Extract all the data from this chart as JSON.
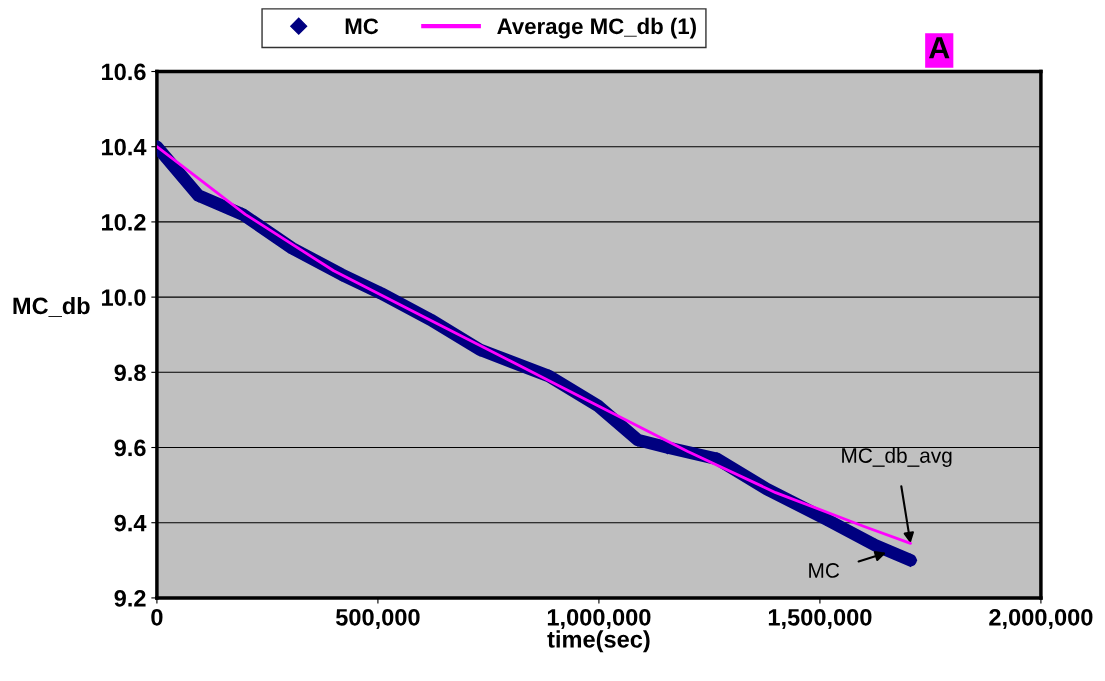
{
  "chart_data": {
    "type": "line",
    "xlabel": "time(sec)",
    "ylabel": "MC_db",
    "x": [
      0,
      94000,
      194000,
      306000,
      418000,
      507000,
      619000,
      731000,
      887000,
      999000,
      1088000,
      1155000,
      1267000,
      1379000,
      1513000,
      1625000,
      1705000
    ],
    "series": [
      {
        "name": "MC",
        "color": "#000080",
        "marker": "diamond",
        "values": [
          10.4,
          10.27,
          10.22,
          10.13,
          10.06,
          10.01,
          9.94,
          9.86,
          9.79,
          9.71,
          9.62,
          9.6,
          9.57,
          9.49,
          9.41,
          9.34,
          9.3
        ]
      },
      {
        "name": "Average MC_db (1)",
        "color": "#ff00ff",
        "marker": "none",
        "x": [
          0,
          200000,
          400000,
          600000,
          800000,
          1000000,
          1200000,
          1400000,
          1600000,
          1705000
        ],
        "values": [
          10.4,
          10.22,
          10.07,
          9.95,
          9.83,
          9.71,
          9.59,
          9.48,
          9.39,
          9.345
        ]
      }
    ],
    "xlim": [
      0,
      2000000
    ],
    "xticks": [
      {
        "value": 0,
        "label": "0"
      },
      {
        "value": 500000,
        "label": "500,000"
      },
      {
        "value": 1000000,
        "label": "1,000,000"
      },
      {
        "value": 1500000,
        "label": "1,500,000"
      },
      {
        "value": 2000000,
        "label": "2,000,000"
      }
    ],
    "ylim": [
      9.2,
      10.6
    ],
    "yticks": [
      9.2,
      9.4,
      9.6,
      9.8,
      {
        "value": 10,
        "label": "10.0"
      },
      10.2,
      10.4,
      10.6
    ],
    "grid": "y",
    "legend": "top",
    "line_style": "solid",
    "annotations": [
      {
        "text": "MC_db_avg",
        "x": 1705000,
        "y": 9.345
      },
      {
        "text": "MC",
        "x": 1650000,
        "y": 9.32
      },
      "A"
    ]
  }
}
